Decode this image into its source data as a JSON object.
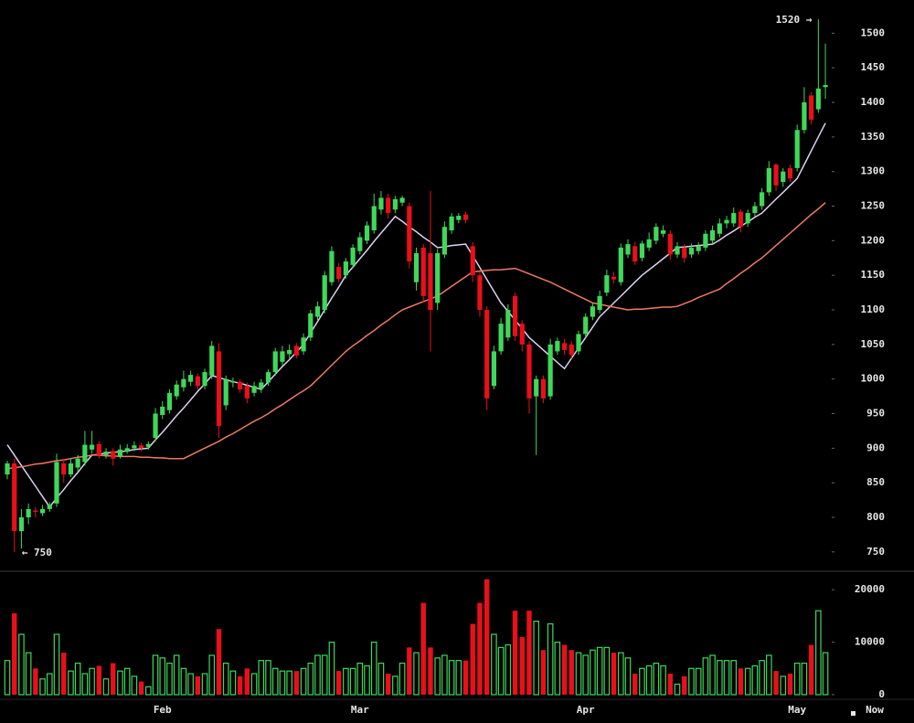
{
  "chart_data": [
    {
      "type": "candlestick",
      "up_color": "#3fd85a",
      "down_color": "#e8101a",
      "ylim": [
        726,
        1548
      ],
      "yticks": [
        750,
        800,
        850,
        900,
        950,
        1000,
        1050,
        1100,
        1150,
        1200,
        1250,
        1300,
        1350,
        1400,
        1450,
        1500
      ],
      "max_label": "1520 →",
      "min_label": "← 750",
      "open": [
        862,
        878,
        780,
        800,
        810,
        806,
        812,
        820,
        878,
        862,
        872,
        880,
        898,
        906,
        890,
        896,
        888,
        895,
        900,
        904,
        902,
        915,
        948,
        955,
        975,
        988,
        996,
        1004,
        990,
        1005,
        1040,
        962,
        995,
        996,
        990,
        980,
        986,
        995,
        1010,
        1025,
        1036,
        1048,
        1040,
        1060,
        1090,
        1100,
        1140,
        1162,
        1150,
        1165,
        1185,
        1200,
        1215,
        1245,
        1262,
        1245,
        1255,
        1250,
        1140,
        1190,
        1182,
        1110,
        1180,
        1215,
        1230,
        1238,
        1192,
        1150,
        1100,
        990,
        1040,
        1060,
        1120,
        1080,
        1050,
        975,
        1000,
        975,
        1040,
        1052,
        1050,
        1040,
        1065,
        1090,
        1100,
        1125,
        1148,
        1140,
        1180,
        1192,
        1175,
        1190,
        1200,
        1210,
        1210,
        1180,
        1190,
        1180,
        1185,
        1190,
        1200,
        1210,
        1225,
        1225,
        1242,
        1225,
        1240,
        1250,
        1270,
        1310,
        1285,
        1305,
        1305,
        1360,
        1410,
        1390,
        1422
      ],
      "high": [
        882,
        885,
        812,
        820,
        815,
        818,
        822,
        892,
        885,
        885,
        890,
        925,
        925,
        910,
        900,
        900,
        905,
        906,
        910,
        908,
        910,
        958,
        968,
        985,
        998,
        1012,
        1012,
        1008,
        1015,
        1055,
        1052,
        1005,
        1002,
        1000,
        995,
        996,
        1000,
        1014,
        1045,
        1048,
        1050,
        1052,
        1066,
        1100,
        1112,
        1156,
        1192,
        1168,
        1175,
        1195,
        1212,
        1228,
        1268,
        1272,
        1268,
        1265,
        1265,
        1255,
        1190,
        1195,
        1272,
        1188,
        1228,
        1240,
        1240,
        1242,
        1198,
        1155,
        1105,
        1048,
        1088,
        1108,
        1125,
        1085,
        1055,
        1005,
        1005,
        1058,
        1060,
        1058,
        1055,
        1070,
        1095,
        1110,
        1128,
        1158,
        1155,
        1196,
        1202,
        1198,
        1200,
        1212,
        1225,
        1222,
        1215,
        1198,
        1195,
        1196,
        1198,
        1215,
        1222,
        1232,
        1236,
        1248,
        1245,
        1245,
        1256,
        1276,
        1315,
        1312,
        1305,
        1310,
        1368,
        1422,
        1415,
        1520,
        1485
      ],
      "low": [
        855,
        750,
        755,
        790,
        800,
        802,
        808,
        815,
        850,
        858,
        866,
        875,
        892,
        885,
        885,
        875,
        885,
        892,
        896,
        895,
        898,
        910,
        942,
        950,
        970,
        982,
        990,
        984,
        985,
        1000,
        915,
        955,
        988,
        980,
        965,
        975,
        980,
        990,
        1005,
        1020,
        1030,
        1030,
        1035,
        1055,
        1085,
        1095,
        1135,
        1140,
        1145,
        1160,
        1180,
        1195,
        1210,
        1238,
        1232,
        1240,
        1250,
        1160,
        1128,
        1110,
        1040,
        1100,
        1175,
        1210,
        1225,
        1225,
        1140,
        1090,
        955,
        985,
        1035,
        1055,
        1055,
        1040,
        950,
        890,
        965,
        970,
        1035,
        1035,
        1030,
        1035,
        1060,
        1085,
        1095,
        1120,
        1138,
        1135,
        1175,
        1165,
        1170,
        1185,
        1195,
        1205,
        1172,
        1175,
        1168,
        1175,
        1180,
        1185,
        1195,
        1205,
        1218,
        1220,
        1212,
        1220,
        1235,
        1245,
        1265,
        1272,
        1278,
        1285,
        1300,
        1355,
        1368,
        1385,
        1405
      ],
      "close": [
        878,
        780,
        800,
        812,
        808,
        812,
        818,
        880,
        862,
        878,
        885,
        905,
        905,
        890,
        895,
        885,
        898,
        900,
        904,
        900,
        906,
        950,
        960,
        980,
        992,
        1000,
        1006,
        990,
        1010,
        1048,
        932,
        1000,
        997,
        985,
        972,
        990,
        995,
        1010,
        1040,
        1040,
        1042,
        1034,
        1060,
        1095,
        1105,
        1150,
        1185,
        1145,
        1170,
        1190,
        1205,
        1222,
        1250,
        1262,
        1240,
        1260,
        1262,
        1170,
        1182,
        1120,
        1100,
        1182,
        1220,
        1235,
        1236,
        1230,
        1150,
        1100,
        972,
        1040,
        1080,
        1100,
        1062,
        1050,
        972,
        1000,
        972,
        1050,
        1055,
        1042,
        1035,
        1065,
        1090,
        1105,
        1120,
        1150,
        1144,
        1190,
        1195,
        1170,
        1196,
        1202,
        1220,
        1215,
        1180,
        1192,
        1175,
        1190,
        1192,
        1210,
        1215,
        1225,
        1230,
        1240,
        1220,
        1240,
        1250,
        1270,
        1305,
        1280,
        1300,
        1290,
        1360,
        1400,
        1375,
        1420,
        1425
      ],
      "series": [
        {
          "color": "#ddd0f2",
          "values": [
            905,
            890,
            875,
            860,
            845,
            830,
            815,
            828,
            840,
            853,
            865,
            878,
            890,
            891,
            893,
            894,
            895,
            896,
            898,
            899,
            900,
            912,
            923,
            935,
            947,
            958,
            970,
            982,
            993,
            1005,
            1002,
            999,
            996,
            994,
            991,
            988,
            985,
            996,
            1007,
            1018,
            1028,
            1039,
            1050,
            1067,
            1083,
            1100,
            1117,
            1133,
            1150,
            1162,
            1174,
            1186,
            1199,
            1211,
            1223,
            1235,
            1228,
            1220,
            1213,
            1205,
            1198,
            1190,
            1191,
            1193,
            1194,
            1195,
            1178,
            1161,
            1144,
            1127,
            1110,
            1098,
            1085,
            1073,
            1060,
            1051,
            1042,
            1033,
            1024,
            1015,
            1030,
            1045,
            1060,
            1075,
            1090,
            1100,
            1110,
            1120,
            1130,
            1140,
            1150,
            1158,
            1166,
            1174,
            1182,
            1190,
            1191,
            1192,
            1193,
            1194,
            1195,
            1201,
            1208,
            1214,
            1221,
            1227,
            1234,
            1240,
            1250,
            1260,
            1270,
            1280,
            1290,
            1310,
            1330,
            1350,
            1370
          ]
        },
        {
          "color": "#f07a62",
          "values": [
            870,
            872,
            873,
            875,
            877,
            878,
            880,
            882,
            883,
            885,
            887,
            888,
            890,
            890,
            889,
            889,
            888,
            888,
            888,
            887,
            887,
            886,
            886,
            885,
            885,
            885,
            890,
            895,
            900,
            905,
            910,
            916,
            921,
            927,
            933,
            939,
            944,
            950,
            957,
            963,
            970,
            977,
            983,
            990,
            1000,
            1010,
            1020,
            1030,
            1040,
            1048,
            1055,
            1063,
            1070,
            1078,
            1085,
            1093,
            1100,
            1104,
            1108,
            1112,
            1116,
            1120,
            1127,
            1134,
            1141,
            1148,
            1155,
            1156,
            1157,
            1158,
            1158,
            1159,
            1160,
            1156,
            1152,
            1148,
            1144,
            1140,
            1135,
            1130,
            1125,
            1120,
            1115,
            1110,
            1108,
            1106,
            1104,
            1102,
            1100,
            1101,
            1101,
            1102,
            1103,
            1104,
            1104,
            1105,
            1109,
            1113,
            1118,
            1122,
            1126,
            1130,
            1138,
            1145,
            1153,
            1160,
            1168,
            1175,
            1184,
            1193,
            1202,
            1211,
            1220,
            1229,
            1238,
            1246,
            1255
          ]
        }
      ]
    },
    {
      "type": "bar",
      "ylim": [
        0,
        23000
      ],
      "yticks": [
        0,
        10000,
        20000
      ],
      "now_label": "Now",
      "categories": [
        null,
        null,
        null,
        null,
        null,
        null,
        null,
        null,
        null,
        null,
        null,
        null,
        null,
        null,
        null,
        null,
        null,
        null,
        null,
        null,
        null,
        null,
        "Feb",
        null,
        null,
        null,
        null,
        null,
        null,
        null,
        null,
        null,
        null,
        null,
        null,
        null,
        null,
        null,
        null,
        null,
        null,
        null,
        null,
        null,
        null,
        null,
        null,
        null,
        null,
        null,
        "Mar",
        null,
        null,
        null,
        null,
        null,
        null,
        null,
        null,
        null,
        null,
        null,
        null,
        null,
        null,
        null,
        null,
        null,
        null,
        null,
        null,
        null,
        null,
        null,
        null,
        null,
        null,
        null,
        null,
        null,
        null,
        null,
        "Apr",
        null,
        null,
        null,
        null,
        null,
        null,
        null,
        null,
        null,
        null,
        null,
        null,
        null,
        null,
        null,
        null,
        null,
        null,
        null,
        null,
        null,
        null,
        null,
        null,
        null,
        null,
        null,
        null,
        null,
        "May",
        null,
        null,
        null,
        null
      ],
      "values": [
        6500,
        15500,
        11500,
        8000,
        5000,
        3000,
        4000,
        11500,
        8000,
        4500,
        6000,
        4000,
        5000,
        5500,
        3000,
        6000,
        4500,
        5000,
        3500,
        2500,
        1500,
        7500,
        7000,
        6000,
        7500,
        5000,
        4000,
        3500,
        4000,
        7500,
        12500,
        6000,
        4500,
        3500,
        5000,
        4000,
        6500,
        6500,
        5000,
        4500,
        4500,
        4500,
        5000,
        6000,
        7500,
        7500,
        10000,
        4500,
        5000,
        5000,
        6000,
        5500,
        10000,
        6000,
        4000,
        3500,
        6000,
        9000,
        8000,
        17500,
        9000,
        7000,
        7500,
        6500,
        6500,
        6500,
        13500,
        17500,
        22000,
        11500,
        9000,
        9500,
        16000,
        11000,
        16000,
        14000,
        8500,
        13500,
        10000,
        9500,
        8500,
        8000,
        7500,
        8500,
        9000,
        9000,
        8000,
        8000,
        7000,
        4000,
        5000,
        5500,
        6000,
        5500,
        4000,
        2000,
        3500,
        5000,
        5000,
        7000,
        7500,
        6500,
        6500,
        6500,
        5000,
        5000,
        5500,
        6500,
        7500,
        4500,
        3500,
        4000,
        6000,
        6000,
        9500,
        16000,
        8000
      ]
    }
  ]
}
